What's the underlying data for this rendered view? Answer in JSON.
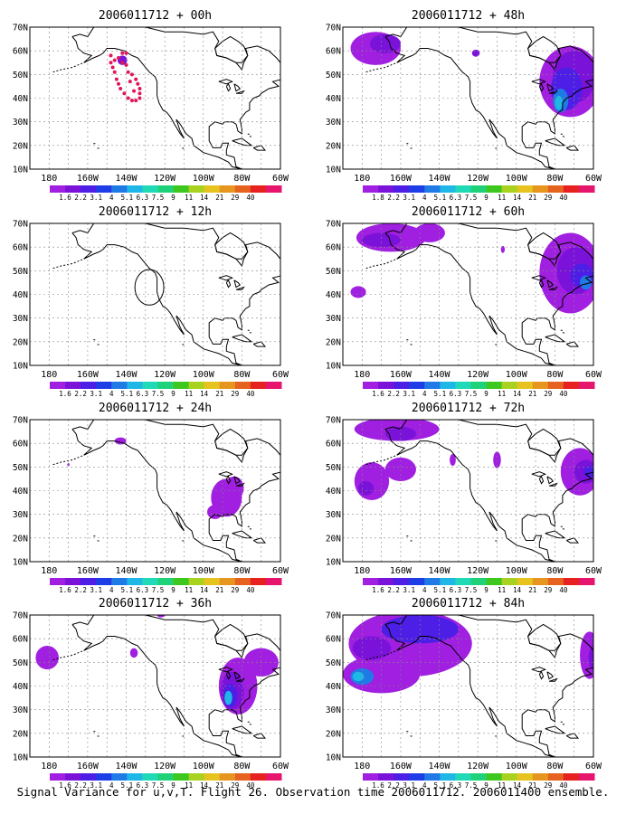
{
  "caption": "Signal Variance for u,v,T. Flight 26. Observation time 2006011712. 2006011400 ensemble.",
  "colors": {
    "ocean": "#ffffff",
    "coast": "#000000",
    "grid": "#888888",
    "colorbar": [
      "#a01fe0",
      "#7b12d9",
      "#4c1ee6",
      "#1f3de6",
      "#1f7ae6",
      "#1fb7e6",
      "#1fd9b7",
      "#1fd27a",
      "#3ec81f",
      "#a8d21f",
      "#e6c31f",
      "#e6961f",
      "#e6621f",
      "#e6211f",
      "#e6156e"
    ]
  },
  "chart_data": [
    {
      "type": "heatmap",
      "title": "2006011712 + 00h",
      "xlabels": [
        "180",
        "160W",
        "140W",
        "120W",
        "100W",
        "80W",
        "60W"
      ],
      "ylabels": [
        "10N",
        "20N",
        "30N",
        "40N",
        "50N",
        "60N",
        "70N"
      ],
      "colorbar": [
        "1.6",
        "2.2",
        "3.1",
        "4",
        "5.1",
        "6.3",
        "7.5",
        "9",
        "11",
        "14",
        "21",
        "29",
        "40"
      ],
      "grid": true,
      "features": [
        {
          "kind": "obs_dots",
          "color": "#e0155a",
          "points": [
            [
              -148,
              58
            ],
            [
              -146,
              56
            ],
            [
              -144,
              57
            ],
            [
              -142,
              55
            ],
            [
              -140,
              54
            ],
            [
              -139,
              51
            ],
            [
              -137,
              50
            ],
            [
              -135,
              48
            ],
            [
              -134,
              46
            ],
            [
              -133,
              44
            ],
            [
              -133,
              42
            ],
            [
              -133,
              40
            ],
            [
              -135,
              39
            ],
            [
              -137,
              39
            ],
            [
              -139,
              40
            ],
            [
              -141,
              42
            ],
            [
              -143,
              44
            ],
            [
              -144,
              46
            ],
            [
              -145,
              48
            ],
            [
              -146,
              51
            ],
            [
              -147,
              53
            ],
            [
              -148,
              55
            ],
            [
              -140,
              59
            ],
            [
              -142,
              59
            ],
            [
              -138,
              47
            ],
            [
              -136,
              43
            ]
          ]
        },
        {
          "kind": "blob",
          "lon": -142,
          "lat": 56,
          "rx": 2.5,
          "ry": 2,
          "color": "#7b12d9"
        }
      ]
    },
    {
      "type": "heatmap",
      "title": "2006011712 + 48h",
      "xlabels": [
        "180",
        "160W",
        "140W",
        "120W",
        "100W",
        "80W",
        "60W"
      ],
      "ylabels": [
        "10N",
        "20N",
        "30N",
        "40N",
        "50N",
        "60N",
        "70N"
      ],
      "colorbar": [
        "1.8",
        "2.2",
        "3.1",
        "4",
        "5.1",
        "6.3",
        "7.5",
        "9",
        "11",
        "14",
        "21",
        "29",
        "40"
      ],
      "grid": true,
      "features": [
        {
          "kind": "blob",
          "lon": -173,
          "lat": 61,
          "rx": 13,
          "ry": 7,
          "color": "#a01fe0"
        },
        {
          "kind": "blob",
          "lon": -168,
          "lat": 63,
          "rx": 8,
          "ry": 4,
          "color": "#7b12d9"
        },
        {
          "kind": "blob",
          "lon": -121,
          "lat": 59,
          "rx": 2,
          "ry": 1.5,
          "color": "#7b12d9"
        },
        {
          "kind": "blob",
          "lon": -72,
          "lat": 47,
          "rx": 16,
          "ry": 15,
          "color": "#a01fe0"
        },
        {
          "kind": "blob",
          "lon": -70,
          "lat": 49,
          "rx": 11,
          "ry": 11,
          "color": "#7b12d9"
        },
        {
          "kind": "blob",
          "lon": -74,
          "lat": 44,
          "rx": 8,
          "ry": 9,
          "color": "#4c1ee6"
        },
        {
          "kind": "blob",
          "lon": -77,
          "lat": 39,
          "rx": 4,
          "ry": 5,
          "color": "#1f7ae6"
        },
        {
          "kind": "blob",
          "lon": -78,
          "lat": 38,
          "rx": 2,
          "ry": 3,
          "color": "#1fb7e6"
        }
      ]
    },
    {
      "type": "heatmap",
      "title": "2006011712 + 12h",
      "xlabels": [
        "180",
        "160W",
        "140W",
        "120W",
        "100W",
        "80W",
        "60W"
      ],
      "ylabels": [
        "10N",
        "20N",
        "30N",
        "40N",
        "50N",
        "60N",
        "70N"
      ],
      "colorbar": [
        "1.6",
        "2.2",
        "3.1",
        "4",
        "5.1",
        "6.3",
        "7.5",
        "9",
        "11",
        "14",
        "21",
        "29",
        "40"
      ],
      "grid": true,
      "features": [
        {
          "kind": "circle",
          "lon": -128,
          "lat": 43,
          "r": 7.5
        }
      ]
    },
    {
      "type": "heatmap",
      "title": "2006011712 + 60h",
      "xlabels": [
        "180",
        "160W",
        "140W",
        "120W",
        "100W",
        "80W",
        "60W"
      ],
      "ylabels": [
        "10N",
        "20N",
        "30N",
        "40N",
        "50N",
        "60N",
        "70N"
      ],
      "colorbar": [
        "1.6",
        "2.2",
        "3.1",
        "4",
        "5.1",
        "6.3",
        "7.5",
        "9",
        "11",
        "14",
        "21",
        "29",
        "40"
      ],
      "grid": true,
      "features": [
        {
          "kind": "blob",
          "lon": -165,
          "lat": 64,
          "rx": 18,
          "ry": 6,
          "color": "#a01fe0"
        },
        {
          "kind": "blob",
          "lon": -170,
          "lat": 63,
          "rx": 10,
          "ry": 3,
          "color": "#7b12d9"
        },
        {
          "kind": "blob",
          "lon": -145,
          "lat": 66,
          "rx": 8,
          "ry": 4,
          "color": "#a01fe0"
        },
        {
          "kind": "blob",
          "lon": -182,
          "lat": 41,
          "rx": 4,
          "ry": 2.5,
          "color": "#a01fe0"
        },
        {
          "kind": "blob",
          "lon": -107,
          "lat": 59,
          "rx": 1,
          "ry": 1.5,
          "color": "#a01fe0"
        },
        {
          "kind": "blob",
          "lon": -72,
          "lat": 49,
          "rx": 16,
          "ry": 17,
          "color": "#a01fe0"
        },
        {
          "kind": "blob",
          "lon": -69,
          "lat": 50,
          "rx": 10,
          "ry": 10,
          "color": "#7b12d9"
        },
        {
          "kind": "blob",
          "lon": -66,
          "lat": 48,
          "rx": 6,
          "ry": 5,
          "color": "#4c1ee6"
        },
        {
          "kind": "blob",
          "lon": -64,
          "lat": 45,
          "rx": 3,
          "ry": 3,
          "color": "#1f7ae6"
        }
      ]
    },
    {
      "type": "heatmap",
      "title": "2006011712 + 24h",
      "xlabels": [
        "180",
        "160W",
        "140W",
        "120W",
        "100W",
        "80W",
        "60W"
      ],
      "ylabels": [
        "10N",
        "20N",
        "30N",
        "40N",
        "50N",
        "60N",
        "70N"
      ],
      "colorbar": [
        "1.6",
        "2.2",
        "3.1",
        "4",
        "5.1",
        "6.3",
        "7.5",
        "9",
        "11",
        "14",
        "21",
        "29",
        "40"
      ],
      "grid": true,
      "features": [
        {
          "kind": "blob",
          "lon": -143,
          "lat": 61,
          "rx": 3,
          "ry": 1.5,
          "color": "#a01fe0"
        },
        {
          "kind": "blob",
          "lon": -170,
          "lat": 51,
          "rx": 0.6,
          "ry": 0.6,
          "color": "#a01fe0"
        },
        {
          "kind": "blob",
          "lon": -88,
          "lat": 37,
          "rx": 8,
          "ry": 8,
          "color": "#a01fe0"
        },
        {
          "kind": "blob",
          "lon": -84,
          "lat": 41,
          "rx": 5,
          "ry": 5,
          "color": "#a01fe0"
        },
        {
          "kind": "blob",
          "lon": -94,
          "lat": 31,
          "rx": 4,
          "ry": 3,
          "color": "#a01fe0"
        }
      ]
    },
    {
      "type": "heatmap",
      "title": "2006011712 + 72h",
      "xlabels": [
        "180",
        "160W",
        "140W",
        "120W",
        "100W",
        "80W",
        "60W"
      ],
      "ylabels": [
        "10N",
        "20N",
        "30N",
        "40N",
        "50N",
        "60N",
        "70N"
      ],
      "colorbar": [
        "1.6",
        "2.2",
        "3.1",
        "4",
        "5.1",
        "6.3",
        "7.5",
        "9",
        "11",
        "14",
        "21",
        "29",
        "40"
      ],
      "grid": true,
      "features": [
        {
          "kind": "blob",
          "lon": -162,
          "lat": 66,
          "rx": 22,
          "ry": 5,
          "color": "#a01fe0"
        },
        {
          "kind": "blob",
          "lon": -160,
          "lat": 64,
          "rx": 8,
          "ry": 3,
          "color": "#7b12d9"
        },
        {
          "kind": "blob",
          "lon": -175,
          "lat": 44,
          "rx": 9,
          "ry": 8,
          "color": "#a01fe0"
        },
        {
          "kind": "blob",
          "lon": -160,
          "lat": 49,
          "rx": 8,
          "ry": 5,
          "color": "#a01fe0"
        },
        {
          "kind": "blob",
          "lon": -178,
          "lat": 41,
          "rx": 4,
          "ry": 3,
          "color": "#7b12d9"
        },
        {
          "kind": "blob",
          "lon": -133,
          "lat": 53,
          "rx": 1.6,
          "ry": 2.5,
          "color": "#a01fe0"
        },
        {
          "kind": "blob",
          "lon": -110,
          "lat": 53,
          "rx": 2,
          "ry": 3.5,
          "color": "#a01fe0"
        },
        {
          "kind": "blob",
          "lon": -67,
          "lat": 48,
          "rx": 10,
          "ry": 10,
          "color": "#a01fe0"
        },
        {
          "kind": "blob",
          "lon": -64,
          "lat": 48,
          "rx": 6,
          "ry": 5,
          "color": "#7b12d9"
        },
        {
          "kind": "blob",
          "lon": -62,
          "lat": 48,
          "rx": 3,
          "ry": 2.5,
          "color": "#4c1ee6"
        }
      ]
    },
    {
      "type": "heatmap",
      "title": "2006011712 + 36h",
      "xlabels": [
        "180",
        "160W",
        "140W",
        "120W",
        "100W",
        "80W",
        "60W"
      ],
      "ylabels": [
        "10N",
        "20N",
        "30N",
        "40N",
        "50N",
        "60N",
        "70N"
      ],
      "colorbar": [
        "1.6",
        "2.2",
        "3.1",
        "4",
        "5.1",
        "6.3",
        "7.5",
        "9",
        "11",
        "14",
        "21",
        "29",
        "40"
      ],
      "grid": true,
      "features": [
        {
          "kind": "blob",
          "lon": -181,
          "lat": 52,
          "rx": 6,
          "ry": 5,
          "color": "#a01fe0"
        },
        {
          "kind": "blob",
          "lon": -136,
          "lat": 54,
          "rx": 2,
          "ry": 2,
          "color": "#a01fe0"
        },
        {
          "kind": "blob",
          "lon": -122,
          "lat": 70,
          "rx": 2,
          "ry": 1,
          "color": "#a01fe0"
        },
        {
          "kind": "blob",
          "lon": -82,
          "lat": 40,
          "rx": 10,
          "ry": 12,
          "color": "#a01fe0"
        },
        {
          "kind": "blob",
          "lon": -70,
          "lat": 50,
          "rx": 9,
          "ry": 6,
          "color": "#a01fe0"
        },
        {
          "kind": "blob",
          "lon": -85,
          "lat": 38,
          "rx": 6,
          "ry": 8,
          "color": "#7b12d9"
        },
        {
          "kind": "blob",
          "lon": -86,
          "lat": 36,
          "rx": 3.5,
          "ry": 5,
          "color": "#4c1ee6"
        },
        {
          "kind": "blob",
          "lon": -87,
          "lat": 35,
          "rx": 2,
          "ry": 3,
          "color": "#1fb7e6"
        }
      ]
    },
    {
      "type": "heatmap",
      "title": "2006011712 + 84h",
      "xlabels": [
        "180",
        "160W",
        "140W",
        "120W",
        "100W",
        "80W",
        "60W"
      ],
      "ylabels": [
        "10N",
        "20N",
        "30N",
        "40N",
        "50N",
        "60N",
        "70N"
      ],
      "colorbar": [
        "1.6",
        "2.2",
        "3.1",
        "4",
        "5.1",
        "6.3",
        "7.5",
        "9",
        "11",
        "14",
        "21",
        "29",
        "40"
      ],
      "grid": true,
      "features": [
        {
          "kind": "blob",
          "lon": -155,
          "lat": 58,
          "rx": 32,
          "ry": 14,
          "color": "#a01fe0"
        },
        {
          "kind": "blob",
          "lon": -170,
          "lat": 45,
          "rx": 20,
          "ry": 8,
          "color": "#a01fe0"
        },
        {
          "kind": "blob",
          "lon": -150,
          "lat": 64,
          "rx": 20,
          "ry": 6,
          "color": "#4c1ee6"
        },
        {
          "kind": "blob",
          "lon": -175,
          "lat": 56,
          "rx": 10,
          "ry": 5,
          "color": "#7b12d9"
        },
        {
          "kind": "blob",
          "lon": -180,
          "lat": 44,
          "rx": 6,
          "ry": 3.5,
          "color": "#1f7ae6"
        },
        {
          "kind": "blob",
          "lon": -182,
          "lat": 44,
          "rx": 3,
          "ry": 2,
          "color": "#1fb7e6"
        },
        {
          "kind": "blob",
          "lon": -62,
          "lat": 53,
          "rx": 5,
          "ry": 10,
          "color": "#a01fe0"
        },
        {
          "kind": "blob",
          "lon": -60,
          "lat": 52,
          "rx": 2.5,
          "ry": 5,
          "color": "#7b12d9"
        }
      ]
    }
  ]
}
